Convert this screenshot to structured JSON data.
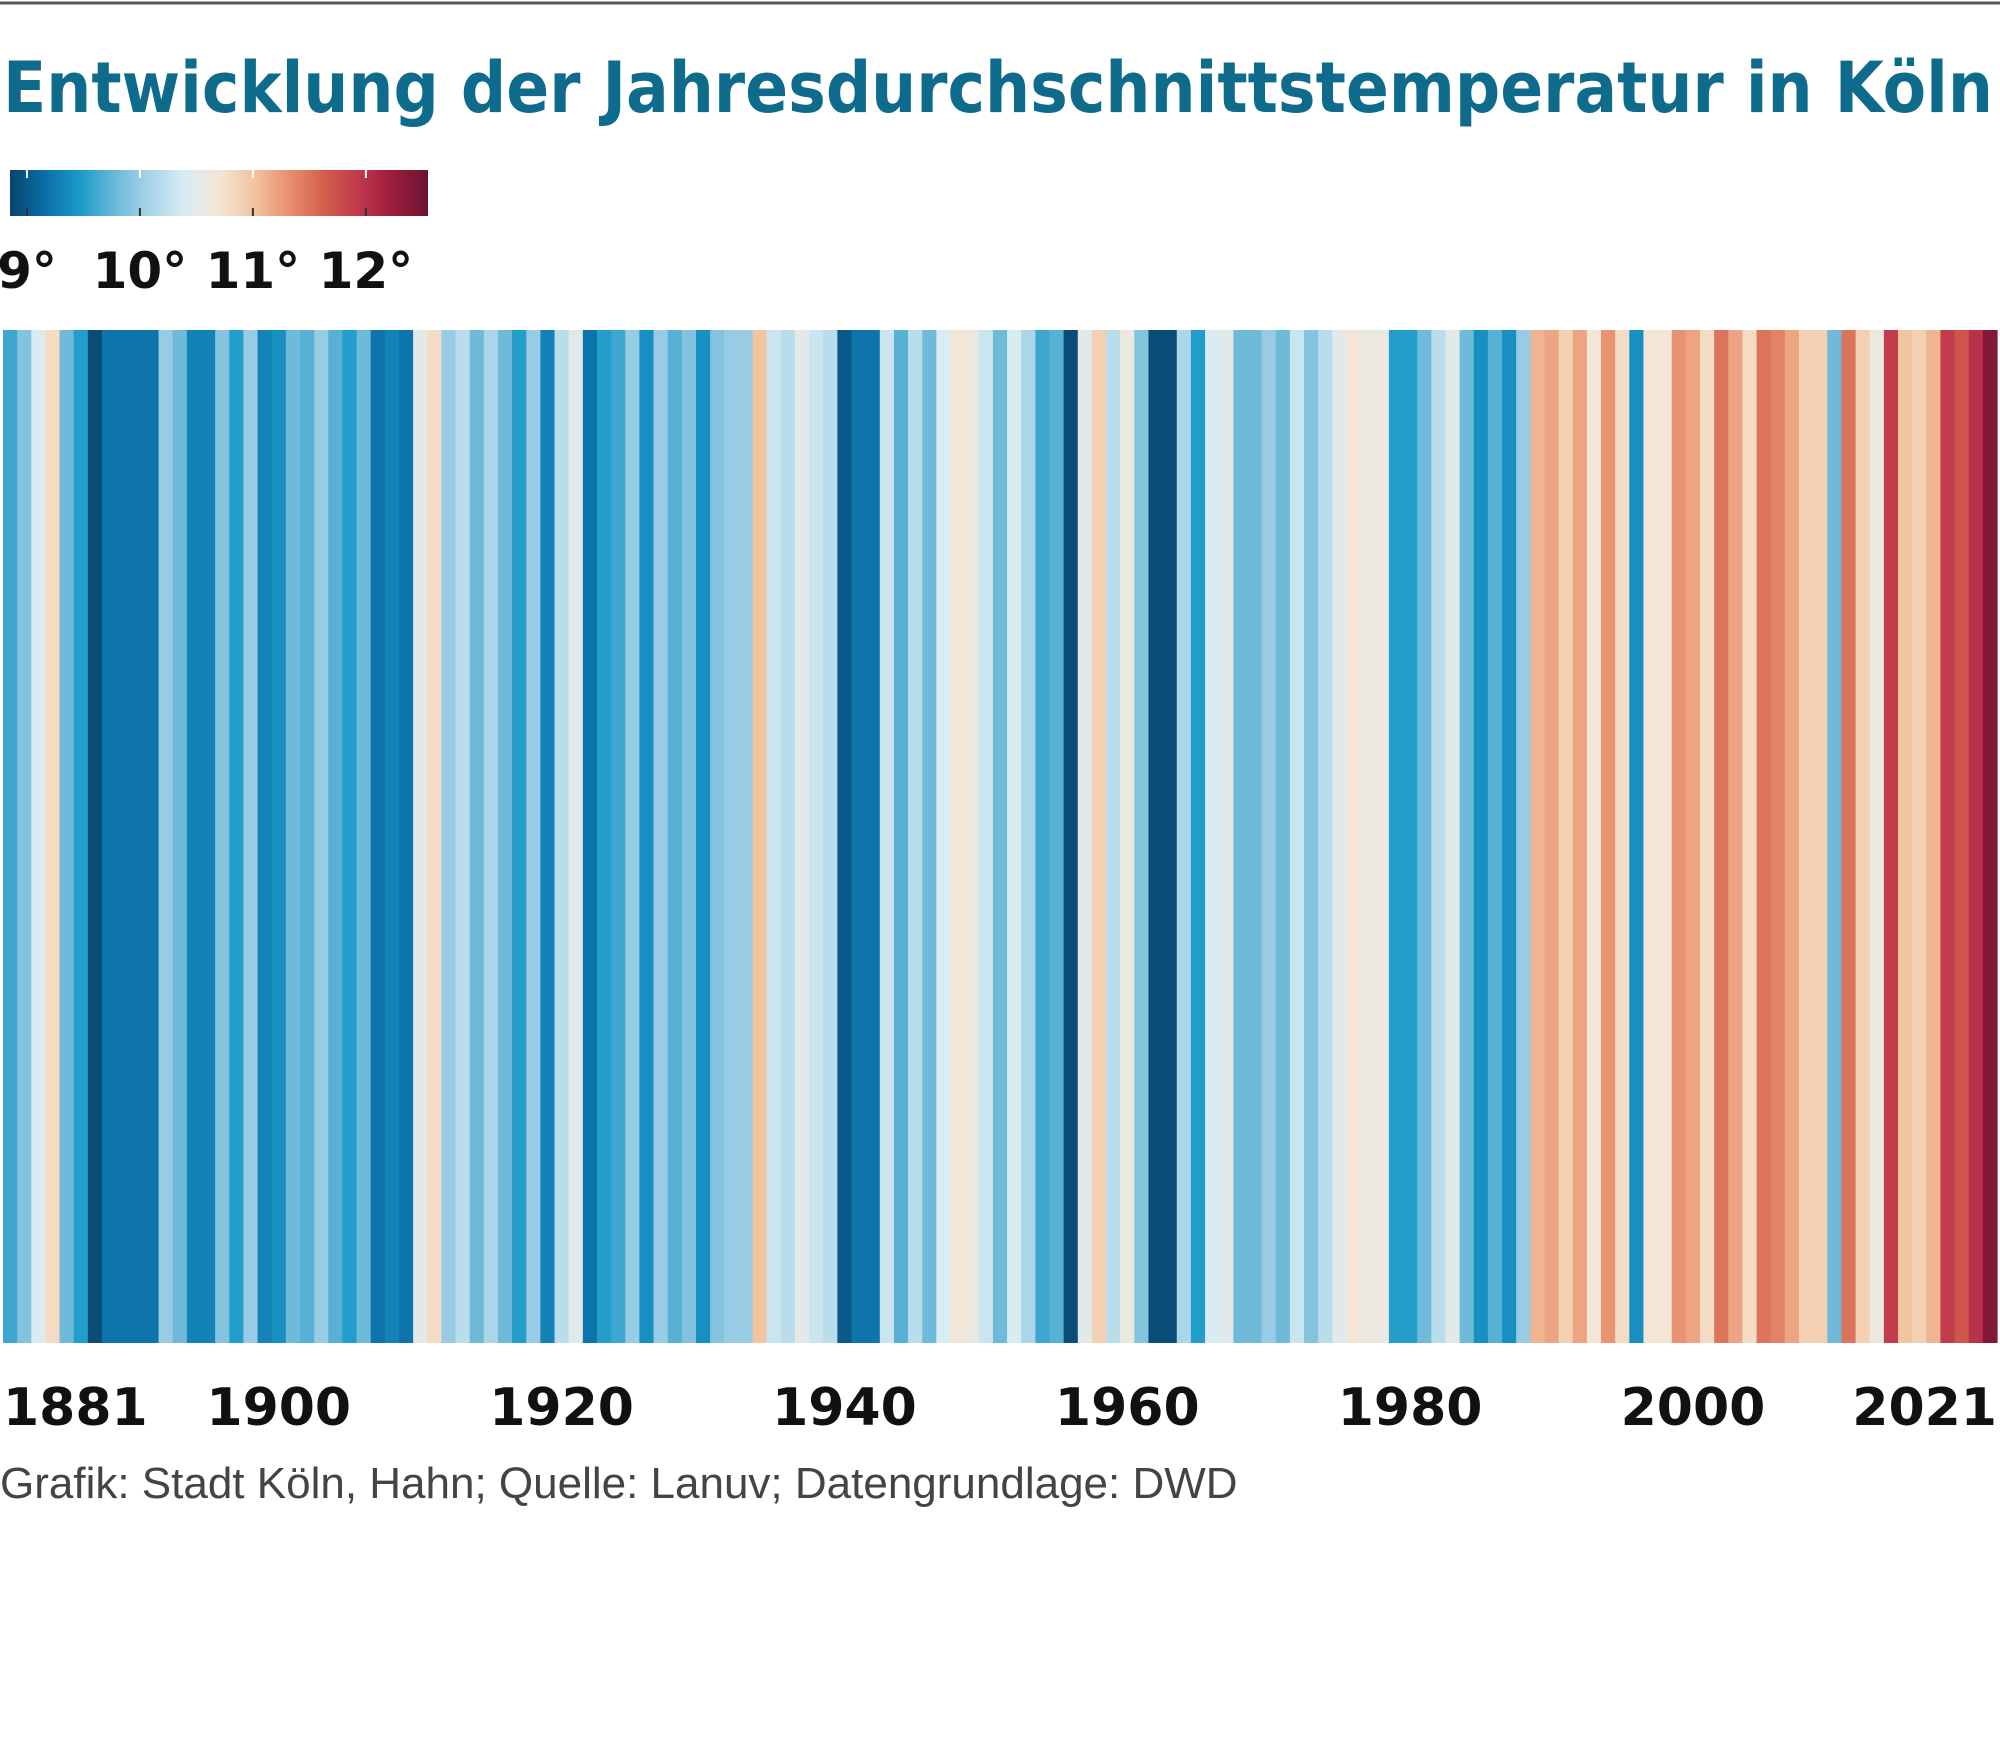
{
  "chart_data": {
    "type": "stripes",
    "title": "Entwicklung der Jahresdurchschnittstemperatur in Köln",
    "source": "Grafik: Stadt Köln, Hahn; Quelle: Lanuv; Datengrundlage: DWD",
    "x": [
      1881,
      1882,
      1883,
      1884,
      1885,
      1886,
      1887,
      1888,
      1889,
      1890,
      1891,
      1892,
      1893,
      1894,
      1895,
      1896,
      1897,
      1898,
      1899,
      1900,
      1901,
      1902,
      1903,
      1904,
      1905,
      1906,
      1907,
      1908,
      1909,
      1910,
      1911,
      1912,
      1913,
      1914,
      1915,
      1916,
      1917,
      1918,
      1919,
      1920,
      1921,
      1922,
      1923,
      1924,
      1925,
      1926,
      1927,
      1928,
      1929,
      1930,
      1931,
      1932,
      1933,
      1934,
      1935,
      1936,
      1937,
      1938,
      1939,
      1940,
      1941,
      1942,
      1943,
      1944,
      1945,
      1946,
      1947,
      1948,
      1949,
      1950,
      1951,
      1952,
      1953,
      1954,
      1955,
      1956,
      1957,
      1958,
      1959,
      1960,
      1961,
      1962,
      1963,
      1964,
      1965,
      1966,
      1967,
      1968,
      1969,
      1970,
      1971,
      1972,
      1973,
      1974,
      1975,
      1976,
      1977,
      1978,
      1979,
      1980,
      1981,
      1982,
      1983,
      1984,
      1985,
      1986,
      1987,
      1988,
      1989,
      1990,
      1991,
      1992,
      1993,
      1994,
      1995,
      1996,
      1997,
      1998,
      1999,
      2000,
      2001,
      2002,
      2003,
      2004,
      2005,
      2006,
      2007,
      2008,
      2009,
      2010,
      2011,
      2012,
      2013,
      2014,
      2015,
      2016,
      2017,
      2018,
      2019,
      2020,
      2021
    ],
    "values": [
      9.6,
      9.9,
      10.4,
      10.8,
      9.8,
      9.5,
      8.9,
      9.2,
      9.2,
      9.2,
      9.2,
      10.0,
      9.8,
      9.3,
      9.3,
      9.9,
      9.5,
      10.0,
      9.3,
      9.4,
      9.8,
      9.7,
      10.0,
      9.7,
      9.5,
      9.8,
      9.2,
      9.3,
      9.2,
      10.5,
      10.8,
      10.0,
      10.2,
      9.8,
      10.1,
      9.8,
      9.5,
      10.0,
      9.3,
      10.2,
      10.5,
      9.2,
      9.5,
      9.6,
      10.0,
      9.4,
      10.0,
      9.7,
      9.9,
      9.4,
      9.9,
      10.0,
      10.0,
      11.0,
      10.3,
      10.2,
      10.5,
      10.3,
      10.2,
      9.0,
      9.2,
      9.2,
      10.3,
      9.7,
      10.2,
      9.8,
      10.4,
      10.7,
      10.6,
      10.3,
      9.8,
      10.4,
      10.1,
      9.6,
      9.7,
      8.9,
      10.5,
      10.9,
      10.2,
      10.6,
      9.9,
      8.9,
      8.9,
      10.1,
      9.5,
      10.4,
      10.5,
      9.8,
      9.8,
      10.0,
      9.8,
      10.3,
      9.9,
      10.2,
      10.5,
      10.7,
      10.6,
      10.6,
      9.5,
      9.5,
      9.8,
      10.2,
      10.5,
      9.8,
      9.4,
      9.7,
      9.4,
      10.0,
      11.1,
      11.2,
      10.9,
      11.2,
      10.7,
      11.3,
      10.8,
      9.4,
      10.7,
      10.7,
      11.3,
      11.2,
      10.8,
      11.5,
      11.2,
      10.8,
      11.5,
      11.4,
      11.2,
      10.9,
      10.9,
      9.8,
      11.5,
      10.9,
      10.6,
      11.9,
      11.0,
      10.9,
      11.1,
      11.9,
      11.7,
      12.0,
      12.4
    ],
    "xlim": [
      1880.5,
      2021.5
    ],
    "xticks": [
      1881,
      1900,
      1920,
      1940,
      1960,
      1980,
      2000,
      2021
    ],
    "clim": [
      8.85,
      12.55
    ],
    "cticks": [
      {
        "value": 9,
        "label": "9°"
      },
      {
        "value": 10,
        "label": "10°"
      },
      {
        "value": 11,
        "label": "11°"
      },
      {
        "value": 12,
        "label": "12°"
      }
    ],
    "colormap": [
      "#08466e",
      "#0b6ea8",
      "#1a9ac8",
      "#6ab8d8",
      "#a8d4e8",
      "#d8ecf3",
      "#f4e6d6",
      "#f2c4a0",
      "#e89070",
      "#d4604c",
      "#c0384c",
      "#9c1c3c",
      "#6a1430"
    ]
  }
}
